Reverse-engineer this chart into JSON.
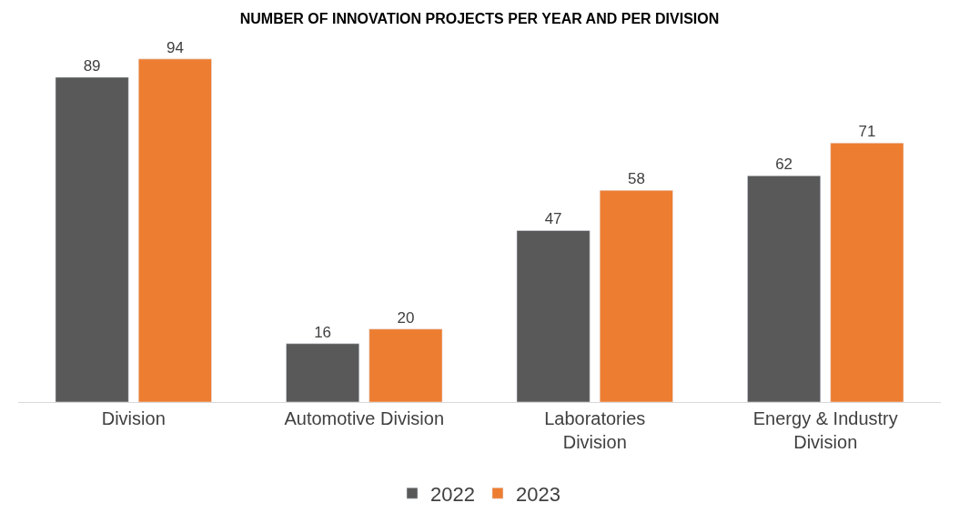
{
  "chart_data": {
    "type": "bar",
    "title": "NUMBER OF INNOVATION PROJECTS PER YEAR AND PER DIVISION",
    "categories": [
      "Division",
      "Automotive Division",
      "Laboratories Division",
      "Energy & Industry Division"
    ],
    "series": [
      {
        "name": "2022",
        "color": "#595959",
        "values": [
          89,
          16,
          47,
          62
        ]
      },
      {
        "name": "2023",
        "color": "#ed7d31",
        "values": [
          94,
          20,
          58,
          71
        ]
      }
    ],
    "data_labels": true,
    "legend": "bottom"
  }
}
